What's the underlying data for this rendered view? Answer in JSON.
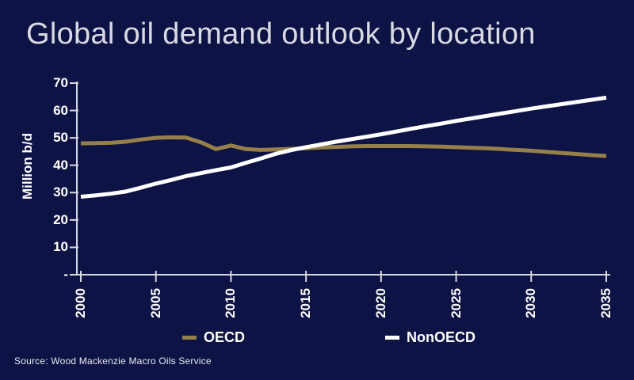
{
  "title": "Global oil demand outlook by location",
  "source": "Source: Wood Mackenzie Macro Oils Service",
  "colors": {
    "background": "#0e1345",
    "title": "#d8dae4",
    "axis": "#d6d9e3",
    "tick_labels": "#ffffff",
    "oecd": "#96804a",
    "nonoecd": "#ffffff"
  },
  "legend": {
    "items": [
      {
        "label": "OECD",
        "color": "#96804a"
      },
      {
        "label": "NonOECD",
        "color": "#ffffff"
      }
    ]
  },
  "chart_data": {
    "type": "line",
    "title": "Global oil demand outlook by location",
    "xlabel": "",
    "ylabel": "Million b/d",
    "xlim": [
      2000,
      2035
    ],
    "ylim": [
      0,
      70
    ],
    "grid": false,
    "legend_position": "bottom",
    "x_tick_values": [
      2000,
      2005,
      2010,
      2015,
      2020,
      2025,
      2030,
      2035
    ],
    "x_tick_labels": [
      "2000",
      "2005",
      "2010",
      "2015",
      "2020",
      "2025",
      "2030",
      "2035"
    ],
    "y_tick_values": [
      0,
      10,
      20,
      30,
      40,
      50,
      60,
      70
    ],
    "y_tick_labels": [
      "-",
      "10",
      "20",
      "30",
      "40",
      "50",
      "60",
      "70"
    ],
    "x": [
      2000,
      2001,
      2002,
      2003,
      2004,
      2005,
      2006,
      2007,
      2008,
      2009,
      2010,
      2011,
      2012,
      2013,
      2014,
      2015,
      2016,
      2017,
      2018,
      2019,
      2020,
      2021,
      2022,
      2023,
      2024,
      2025,
      2026,
      2027,
      2028,
      2029,
      2030,
      2031,
      2032,
      2033,
      2034,
      2035
    ],
    "series": [
      {
        "name": "OECD",
        "color": "#96804a",
        "values": [
          48.0,
          48.1,
          48.2,
          48.6,
          49.4,
          50.0,
          50.2,
          50.1,
          48.4,
          45.9,
          47.2,
          45.9,
          45.6,
          45.8,
          46.0,
          46.2,
          46.5,
          46.7,
          46.9,
          47.0,
          47.0,
          47.0,
          47.0,
          46.9,
          46.8,
          46.6,
          46.4,
          46.2,
          45.9,
          45.6,
          45.3,
          44.9,
          44.5,
          44.1,
          43.7,
          43.4
        ]
      },
      {
        "name": "NonOECD",
        "color": "#ffffff",
        "values": [
          28.5,
          29.0,
          29.6,
          30.4,
          31.8,
          33.3,
          34.6,
          36.0,
          37.1,
          38.2,
          39.2,
          40.9,
          42.5,
          44.2,
          45.5,
          46.6,
          47.6,
          48.6,
          49.5,
          50.4,
          51.3,
          52.3,
          53.3,
          54.3,
          55.2,
          56.2,
          57.1,
          58.0,
          58.9,
          59.8,
          60.7,
          61.5,
          62.3,
          63.1,
          63.9,
          64.7
        ]
      }
    ]
  }
}
